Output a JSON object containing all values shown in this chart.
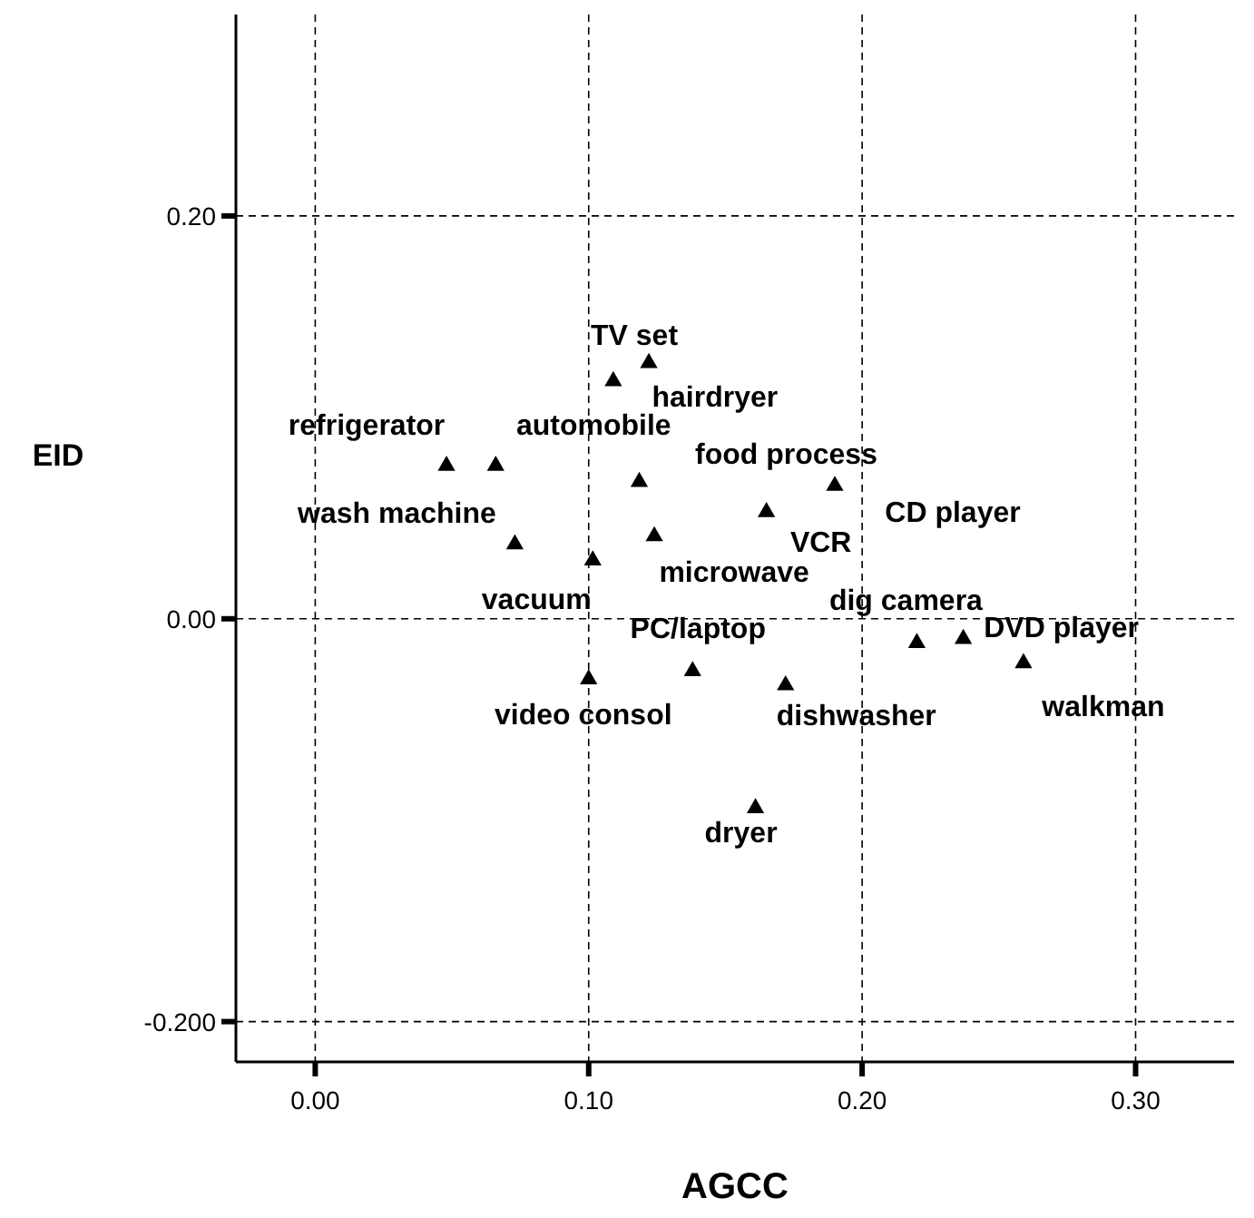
{
  "chart_data": {
    "type": "scatter",
    "xlabel": "AGCC",
    "ylabel": "EID",
    "x": [
      0.048,
      0.066,
      0.109,
      0.122,
      0.1185,
      0.073,
      0.124,
      0.1015,
      0.1,
      0.138,
      0.165,
      0.19,
      0.22,
      0.237,
      0.259,
      0.172,
      0.161
    ],
    "values": [
      0.076,
      0.076,
      0.118,
      0.127,
      0.068,
      0.037,
      0.041,
      0.029,
      -0.03,
      -0.026,
      0.053,
      0.066,
      -0.012,
      -0.01,
      -0.022,
      -0.033,
      -0.094
    ],
    "color": "#000000",
    "marker": "triangle",
    "xlim": [
      -0.029,
      0.336
    ],
    "ylim": [
      -0.22,
      0.3
    ],
    "xticks": [
      {
        "value": 0,
        "label": "0.00"
      },
      {
        "value": 0.1,
        "label": "0.10"
      },
      {
        "value": 0.2,
        "label": "0.20"
      },
      {
        "value": 0.3,
        "label": "0.30"
      }
    ],
    "yticks": [
      {
        "value": -0.2,
        "label": "-0.200"
      },
      {
        "value": 0,
        "label": "0.00"
      },
      {
        "value": 0.2,
        "label": "0.20"
      }
    ],
    "grid": true,
    "annotations": [
      {
        "text": "refrigerator",
        "x": 0.048,
        "y": 0.076
      },
      {
        "text": "automobile",
        "x": 0.066,
        "y": 0.076
      },
      {
        "text": "hairdryer",
        "x": 0.109,
        "y": 0.118
      },
      {
        "text": "TV set",
        "x": 0.122,
        "y": 0.127
      },
      {
        "text": "food process",
        "x": 0.1185,
        "y": 0.068
      },
      {
        "text": "wash machine",
        "x": 0.073,
        "y": 0.037
      },
      {
        "text": "microwave",
        "x": 0.124,
        "y": 0.041
      },
      {
        "text": "vacuum",
        "x": 0.1015,
        "y": 0.029
      },
      {
        "text": "video consol",
        "x": 0.1,
        "y": -0.03
      },
      {
        "text": "PC/laptop",
        "x": 0.138,
        "y": -0.026
      },
      {
        "text": "VCR",
        "x": 0.165,
        "y": 0.053
      },
      {
        "text": "CD player",
        "x": 0.19,
        "y": 0.066
      },
      {
        "text": "dig camera",
        "x": 0.22,
        "y": -0.012
      },
      {
        "text": "DVD player",
        "x": 0.237,
        "y": -0.01
      },
      {
        "text": "walkman",
        "x": 0.259,
        "y": -0.022
      },
      {
        "text": "dishwasher",
        "x": 0.172,
        "y": -0.033
      },
      {
        "text": "dryer",
        "x": 0.161,
        "y": -0.094
      }
    ]
  }
}
